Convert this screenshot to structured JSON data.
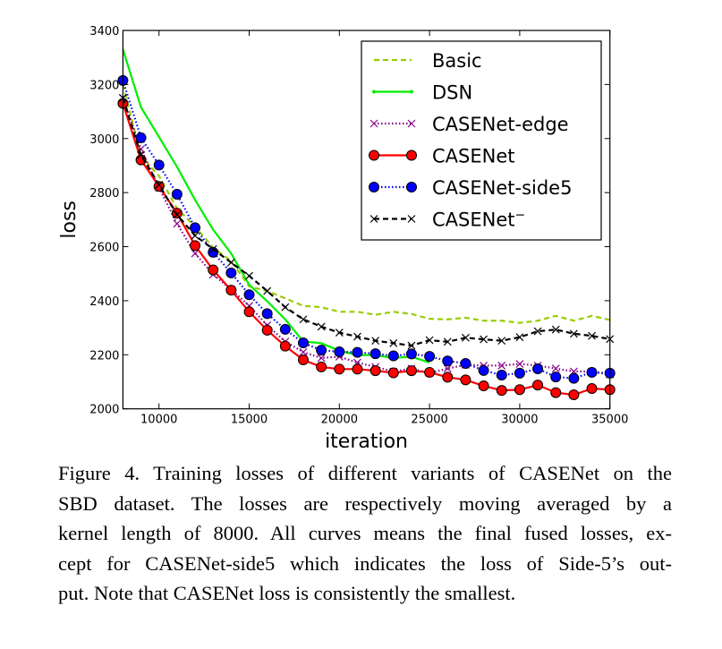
{
  "chart_data": {
    "type": "line",
    "title": "",
    "xlabel": "iteration",
    "ylabel": "loss",
    "xlim": [
      8000,
      35000
    ],
    "ylim": [
      2000,
      3400
    ],
    "xticks": [
      "10000",
      "15000",
      "20000",
      "25000",
      "30000",
      "35000"
    ],
    "yticks": [
      "2000",
      "2200",
      "2400",
      "2600",
      "2800",
      "3000",
      "3200",
      "3400"
    ],
    "grid": false,
    "legend_position": "top-right",
    "x": [
      8000,
      9000,
      10000,
      11000,
      12000,
      13000,
      14000,
      15000,
      16000,
      17000,
      18000,
      19000,
      20000,
      21000,
      22000,
      23000,
      24000,
      25000,
      26000,
      27000,
      28000,
      29000,
      30000,
      31000,
      32000,
      33000,
      34000,
      35000
    ],
    "series": [
      {
        "name": "Basic",
        "color": "#99cc00",
        "style": "dashed",
        "marker": "none",
        "values": [
          3200,
          2935,
          2862,
          2741,
          2674,
          2597,
          2547,
          2453,
          2436,
          2409,
          2381,
          2376,
          2359,
          2359,
          2348,
          2359,
          2351,
          2333,
          2331,
          2337,
          2326,
          2326,
          2318,
          2326,
          2344,
          2326,
          2344,
          2329
        ]
      },
      {
        "name": "DSN",
        "color": "#00ee00",
        "style": "solid",
        "marker": "dot",
        "values": [
          3330,
          3116,
          3006,
          2895,
          2773,
          2663,
          2575,
          2459,
          2398,
          2331,
          2249,
          2243,
          2215,
          2199,
          2199,
          2188,
          2193,
          2171,
          null,
          null,
          null,
          null,
          null,
          null,
          null,
          null,
          null,
          null
        ]
      },
      {
        "name": "CASENet-edge",
        "color": "#880088",
        "style": "dotted",
        "marker": "x",
        "values": [
          3150,
          2961,
          2818,
          2685,
          2575,
          2497,
          2442,
          2381,
          2309,
          2249,
          2210,
          2188,
          2193,
          2171,
          2155,
          2138,
          2149,
          2132,
          2149,
          2163,
          2160,
          2160,
          2166,
          2160,
          2149,
          2138,
          2138,
          2127
        ]
      },
      {
        "name": "CASENet",
        "color": "#ff0000",
        "style": "solid",
        "marker": "circle",
        "values": [
          3130,
          2921,
          2823,
          2724,
          2604,
          2514,
          2439,
          2359,
          2291,
          2232,
          2181,
          2155,
          2147,
          2147,
          2141,
          2133,
          2141,
          2135,
          2117,
          2107,
          2085,
          2068,
          2071,
          2088,
          2060,
          2052,
          2075,
          2071
        ]
      },
      {
        "name": "CASENet-side5",
        "color": "#0000ff",
        "style": "dotted",
        "marker": "circle",
        "values": [
          3215,
          3003,
          2902,
          2794,
          2670,
          2579,
          2503,
          2422,
          2352,
          2294,
          2244,
          2217,
          2211,
          2209,
          2204,
          2196,
          2203,
          2194,
          2177,
          2168,
          2142,
          2125,
          2132,
          2148,
          2118,
          2113,
          2135,
          2132
        ]
      },
      {
        "name": "CASENet−",
        "label_base": "CASENet",
        "label_sup": "−",
        "color": "#000000",
        "style": "dashed",
        "marker": "x",
        "values": [
          3150,
          2939,
          2829,
          2718,
          2641,
          2591,
          2541,
          2492,
          2436,
          2376,
          2331,
          2304,
          2282,
          2267,
          2252,
          2243,
          2234,
          2254,
          2248,
          2263,
          2257,
          2252,
          2265,
          2287,
          2293,
          2278,
          2270,
          2258
        ]
      }
    ]
  },
  "caption": {
    "lines": [
      "Figure 4. Training losses of different variants of CASENet on the",
      "SBD dataset.  The losses are respectively moving averaged by a",
      "kernel length of 8000. All curves means the final fused losses, ex-",
      "cept for CASENet-side5 which indicates the loss of Side-5’s out-",
      "put. Note that CASENet loss is consistently the smallest."
    ]
  }
}
